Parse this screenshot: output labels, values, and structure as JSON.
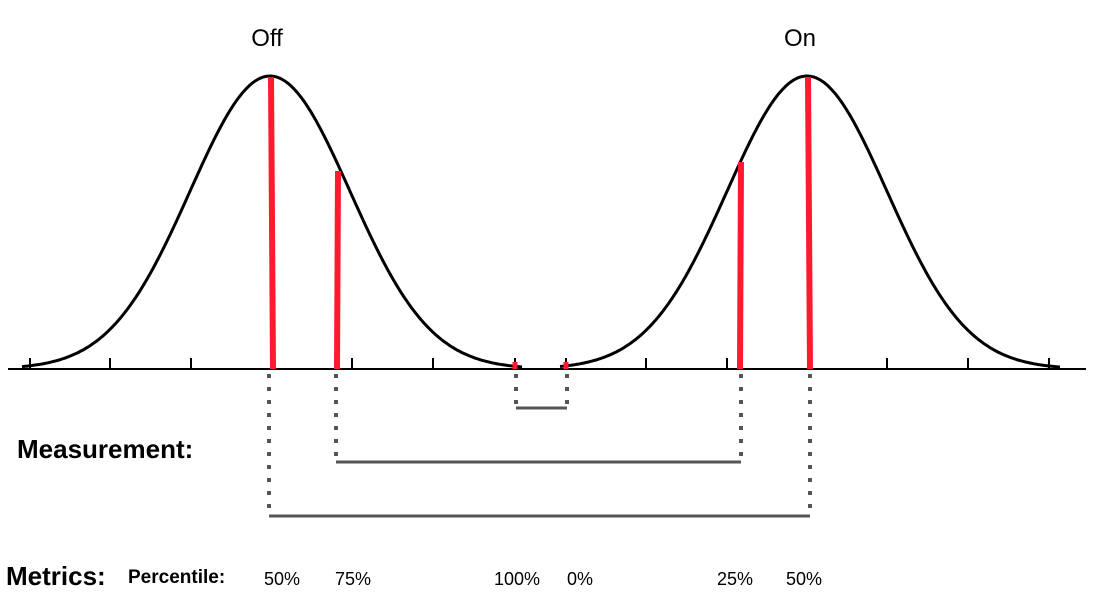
{
  "distributions": [
    {
      "label": "Off"
    },
    {
      "label": "On"
    }
  ],
  "measurement_label": "Measurement:",
  "metrics_label": "Metrics:",
  "percentile_label": "Percentile:",
  "percentiles": [
    "50%",
    "75%",
    "100%",
    "0%",
    "25%",
    "50%"
  ],
  "colors": {
    "curve": "#000000",
    "marker": "#ff1a2e",
    "connector": "#555555",
    "axis": "#000000"
  }
}
